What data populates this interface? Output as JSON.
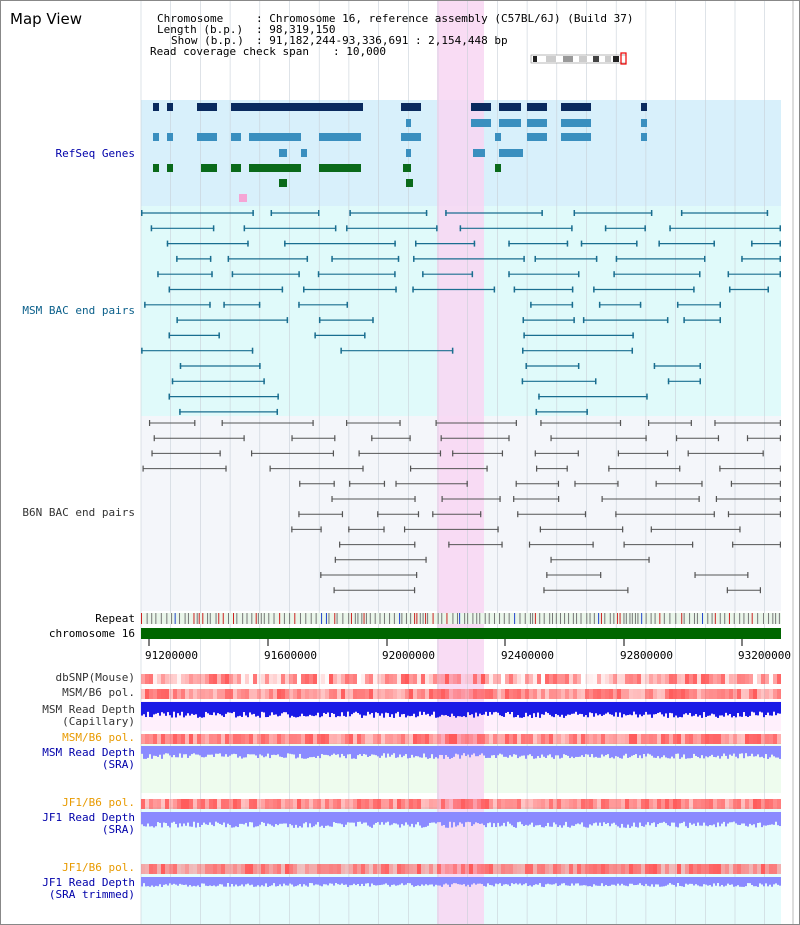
{
  "title": "Map View",
  "info": {
    "chromosome_label": "Chromosome",
    "chromosome_value": ": Chromosome 16, reference assembly (C57BL/6J) (Build 37)",
    "length_label": "Length (b.p.)",
    "length_value": ": 98,319,150",
    "show_label": "Show (b.p.)",
    "show_value": ": 91,182,244-93,336,691 : 2,154,448 bp",
    "coverage_label": "Read coverage check span",
    "coverage_value": ": 10,000"
  },
  "tracks": {
    "refseq": "RefSeq Genes",
    "msm_bac": "MSM BAC end pairs",
    "b6n_bac": "B6N BAC end pairs",
    "repeat": "Repeat",
    "chromosome": "chromosome 16",
    "dbsnp": "dbSNP(Mouse)",
    "msm_b6_pol_1": "MSM/B6 pol.",
    "msm_read_depth_cap_1": "MSM Read Depth",
    "msm_read_depth_cap_2": "(Capillary)",
    "msm_b6_pol_2": "MSM/B6 pol.",
    "msm_read_depth_sra_1": "MSM Read Depth",
    "msm_read_depth_sra_2": "(SRA)",
    "jf1_b6_pol_1": "JF1/B6 pol.",
    "jf1_read_depth_sra_1": "JF1 Read Depth",
    "jf1_read_depth_sra_2": "(SRA)",
    "jf1_b6_pol_2": "JF1/B6 pol.",
    "jf1_read_depth_trim_1": "JF1 Read Depth",
    "jf1_read_depth_trim_2": "(SRA trimmed)"
  },
  "axis_ticks": [
    "91200000",
    "91600000",
    "92000000",
    "92400000",
    "92800000",
    "93200000"
  ],
  "colors": {
    "refseq_bg": "#d8f0fb",
    "msm_bg": "#e0fafa",
    "b6n_bg": "#f4f6fa",
    "highlight": "#f8d6f2",
    "chromosome_bar": "#006600",
    "gene_dark": "#0a2a5e",
    "gene_mid": "#3a8fbf",
    "gene_green": "#0a6a1a",
    "bac_msm": "#1a6e90",
    "bac_b6n": "#555555",
    "polymorphism": "#ff5a5a",
    "depth_cap": "#1a1ae6",
    "depth_sra": "#8a8aff"
  }
}
